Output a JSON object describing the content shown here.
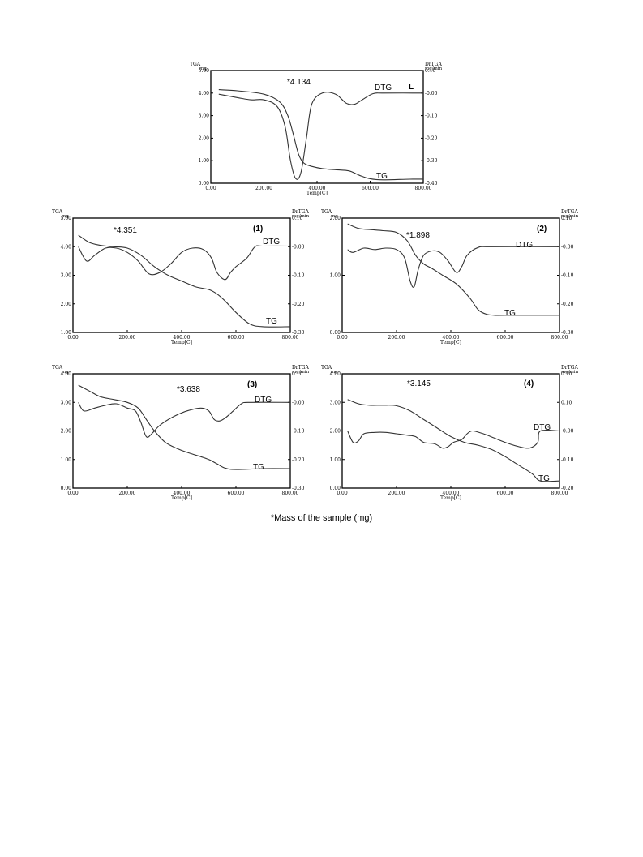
{
  "footnote": "*Mass of the sample (mg)",
  "chart_data": [
    {
      "type": "line",
      "panel_label": "L",
      "annotation": "*4.134",
      "left_axis_title": [
        "TGA",
        "mg"
      ],
      "right_axis_title": [
        "DrTGA",
        "mg/min"
      ],
      "xlabel": "Temp[C]",
      "xlim": [
        0,
        800
      ],
      "ylim": [
        0,
        5
      ],
      "y2lim": [
        -0.4,
        0.1
      ],
      "xticks": [
        "0.00",
        "200.00",
        "400.00",
        "600.00",
        "800.00"
      ],
      "yticks": [
        "0.00",
        "1.00",
        "2.00",
        "3.00",
        "4.00",
        "5.00"
      ],
      "y2ticks": [
        "-0.40",
        "-0.30",
        "-0.20",
        "-0.10",
        "-0.00",
        "0.10"
      ],
      "series": [
        {
          "name": "TG",
          "axis": "left",
          "x": [
            30,
            100,
            200,
            260,
            290,
            310,
            330,
            350,
            380,
            420,
            470,
            520,
            560,
            600,
            650,
            750,
            800
          ],
          "y": [
            4.15,
            4.1,
            3.95,
            3.6,
            3.0,
            2.2,
            1.3,
            0.9,
            0.75,
            0.65,
            0.6,
            0.55,
            0.35,
            0.2,
            0.15,
            0.18,
            0.18
          ]
        },
        {
          "name": "DTG",
          "axis": "right",
          "x": [
            30,
            100,
            150,
            200,
            250,
            280,
            300,
            320,
            340,
            360,
            380,
            420,
            470,
            510,
            540,
            570,
            610,
            650,
            800
          ],
          "y": [
            -0.005,
            -0.02,
            -0.03,
            -0.03,
            -0.06,
            -0.15,
            -0.3,
            -0.38,
            -0.35,
            -0.2,
            -0.05,
            0.0,
            -0.005,
            -0.045,
            -0.05,
            -0.03,
            -0.003,
            0.0,
            0.0
          ]
        }
      ]
    },
    {
      "type": "line",
      "panel_label": "(1)",
      "annotation": "*4.351",
      "left_axis_title": [
        "TGA",
        "mg"
      ],
      "right_axis_title": [
        "DrTGA",
        "mg/min"
      ],
      "xlabel": "Temp[C]",
      "xlim": [
        0,
        800
      ],
      "ylim": [
        1,
        5
      ],
      "y2lim": [
        -0.3,
        0.1
      ],
      "xticks": [
        "0.00",
        "200.00",
        "400.00",
        "600.00",
        "800.00"
      ],
      "yticks": [
        "1.00",
        "2.00",
        "3.00",
        "4.00",
        "5.00"
      ],
      "y2ticks": [
        "-0.30",
        "-0.20",
        "-0.10",
        "-0.00",
        "0.10"
      ],
      "series": [
        {
          "name": "TG",
          "axis": "left",
          "x": [
            20,
            60,
            100,
            150,
            200,
            250,
            300,
            350,
            400,
            450,
            500,
            530,
            560,
            600,
            650,
            700,
            800
          ],
          "y": [
            4.4,
            4.15,
            4.05,
            4.0,
            3.95,
            3.7,
            3.3,
            3.0,
            2.8,
            2.6,
            2.5,
            2.35,
            2.1,
            1.7,
            1.3,
            1.2,
            1.2
          ]
        },
        {
          "name": "DTG",
          "axis": "right",
          "x": [
            20,
            50,
            80,
            120,
            160,
            200,
            240,
            280,
            320,
            360,
            400,
            440,
            480,
            510,
            530,
            560,
            580,
            600,
            640,
            670,
            700,
            800
          ],
          "y": [
            0.0,
            -0.05,
            -0.03,
            -0.005,
            -0.005,
            -0.02,
            -0.05,
            -0.095,
            -0.09,
            -0.06,
            -0.02,
            -0.005,
            -0.01,
            -0.04,
            -0.09,
            -0.115,
            -0.09,
            -0.07,
            -0.04,
            0.0,
            0.002,
            0.002
          ]
        }
      ]
    },
    {
      "type": "line",
      "panel_label": "(2)",
      "annotation": "*1.898",
      "left_axis_title": [
        "TGA",
        "mg"
      ],
      "right_axis_title": [
        "DrTGA",
        "mg/min"
      ],
      "xlabel": "Temp[C]",
      "xlim": [
        0,
        800
      ],
      "ylim": [
        0,
        2
      ],
      "y2lim": [
        -0.3,
        0.1
      ],
      "xticks": [
        "0.00",
        "200.00",
        "400.00",
        "600.00",
        "800.00"
      ],
      "yticks": [
        "0.00",
        "1.00",
        "2.00"
      ],
      "y2ticks": [
        "-0.30",
        "-0.20",
        "-0.10",
        "-0.00",
        "0.10"
      ],
      "series": [
        {
          "name": "TG",
          "axis": "left",
          "x": [
            20,
            60,
            100,
            150,
            200,
            240,
            270,
            300,
            330,
            370,
            420,
            470,
            500,
            530,
            560,
            600,
            800
          ],
          "y": [
            1.9,
            1.82,
            1.8,
            1.78,
            1.75,
            1.6,
            1.35,
            1.2,
            1.12,
            1.0,
            0.85,
            0.6,
            0.4,
            0.32,
            0.3,
            0.3,
            0.3
          ]
        },
        {
          "name": "DTG",
          "axis": "right",
          "x": [
            20,
            40,
            80,
            120,
            160,
            200,
            230,
            250,
            265,
            280,
            300,
            330,
            360,
            390,
            420,
            440,
            460,
            500,
            550,
            800
          ],
          "y": [
            -0.01,
            -0.02,
            -0.005,
            -0.01,
            -0.005,
            -0.01,
            -0.04,
            -0.12,
            -0.14,
            -0.08,
            -0.03,
            -0.015,
            -0.02,
            -0.05,
            -0.09,
            -0.07,
            -0.03,
            -0.003,
            0.0,
            0.0
          ]
        }
      ]
    },
    {
      "type": "line",
      "panel_label": "(3)",
      "annotation": "*3.638",
      "left_axis_title": [
        "TGA",
        "mg"
      ],
      "right_axis_title": [
        "DrTGA",
        "mg/min"
      ],
      "xlabel": "Temp[C]",
      "xlim": [
        0,
        800
      ],
      "ylim": [
        0,
        4
      ],
      "y2lim": [
        -0.3,
        0.1
      ],
      "xticks": [
        "0.00",
        "200.00",
        "400.00",
        "600.00",
        "800.00"
      ],
      "yticks": [
        "0.00",
        "1.00",
        "2.00",
        "3.00",
        "4.00"
      ],
      "y2ticks": [
        "-0.30",
        "-0.20",
        "-0.10",
        "-0.00",
        "0.10"
      ],
      "series": [
        {
          "name": "TG",
          "axis": "left",
          "x": [
            20,
            60,
            100,
            150,
            200,
            240,
            270,
            300,
            340,
            380,
            420,
            470,
            500,
            530,
            560,
            600,
            700,
            800
          ],
          "y": [
            3.6,
            3.4,
            3.2,
            3.1,
            3.0,
            2.8,
            2.4,
            2.0,
            1.6,
            1.4,
            1.25,
            1.1,
            1.0,
            0.85,
            0.7,
            0.65,
            0.68,
            0.68
          ]
        },
        {
          "name": "DTG",
          "axis": "right",
          "x": [
            20,
            40,
            80,
            120,
            160,
            200,
            230,
            250,
            270,
            290,
            320,
            370,
            420,
            470,
            500,
            520,
            540,
            560,
            590,
            620,
            650,
            800
          ],
          "y": [
            0.0,
            -0.03,
            -0.02,
            -0.01,
            -0.005,
            -0.02,
            -0.03,
            -0.07,
            -0.12,
            -0.11,
            -0.08,
            -0.05,
            -0.03,
            -0.02,
            -0.03,
            -0.06,
            -0.065,
            -0.055,
            -0.03,
            -0.005,
            0.0,
            0.0
          ]
        }
      ]
    },
    {
      "type": "line",
      "panel_label": "(4)",
      "annotation": "*3.145",
      "left_axis_title": [
        "TGA",
        "mg"
      ],
      "right_axis_title": [
        "DrTGA",
        "mg/min"
      ],
      "xlabel": "Temp[C]",
      "xlim": [
        0,
        800
      ],
      "ylim": [
        0,
        4
      ],
      "y2lim": [
        -0.2,
        0.2
      ],
      "xticks": [
        "0.00",
        "200.00",
        "400.00",
        "600.00",
        "800.00"
      ],
      "yticks": [
        "0.00",
        "1.00",
        "2.00",
        "3.00",
        "4.00"
      ],
      "y2ticks": [
        "-0.20",
        "-0.10",
        "-0.00",
        "0.10",
        "0.20"
      ],
      "series": [
        {
          "name": "TG",
          "axis": "left",
          "x": [
            20,
            60,
            100,
            150,
            200,
            250,
            300,
            350,
            400,
            450,
            500,
            550,
            600,
            650,
            700,
            730,
            800
          ],
          "y": [
            3.1,
            2.95,
            2.9,
            2.9,
            2.88,
            2.7,
            2.4,
            2.1,
            1.8,
            1.6,
            1.5,
            1.35,
            1.1,
            0.8,
            0.5,
            0.25,
            0.25
          ]
        },
        {
          "name": "DTG",
          "axis": "right",
          "x": [
            20,
            40,
            60,
            80,
            120,
            160,
            200,
            240,
            270,
            300,
            340,
            370,
            390,
            410,
            440,
            460,
            480,
            520,
            560,
            600,
            650,
            690,
            720,
            730,
            800
          ],
          "y": [
            0.0,
            -0.04,
            -0.035,
            -0.01,
            -0.005,
            -0.005,
            -0.01,
            -0.015,
            -0.02,
            -0.04,
            -0.045,
            -0.06,
            -0.055,
            -0.04,
            -0.03,
            -0.01,
            0.0,
            -0.01,
            -0.025,
            -0.04,
            -0.055,
            -0.06,
            -0.04,
            0.0,
            0.0
          ]
        }
      ]
    }
  ]
}
